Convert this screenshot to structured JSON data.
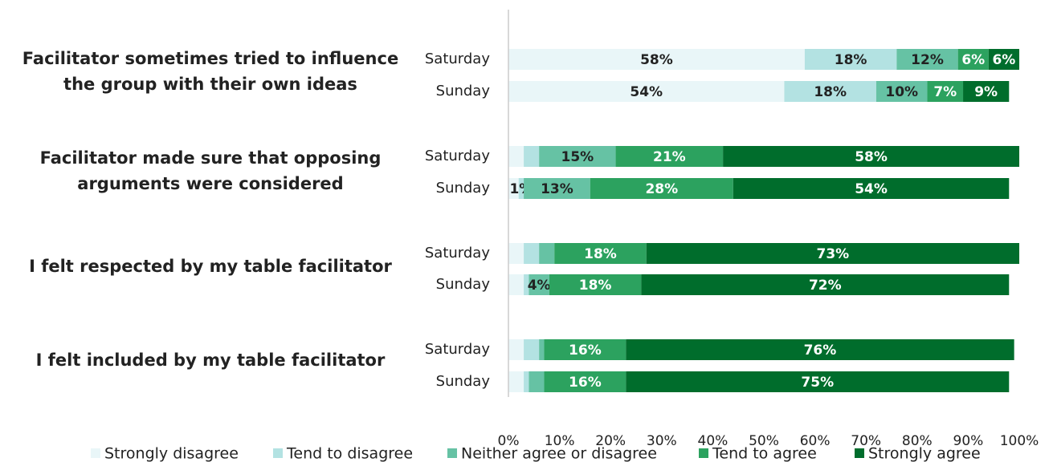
{
  "chart_data": {
    "type": "stacked-bar",
    "group_labels": [
      [
        "Facilitator sometimes tried to influence",
        "the group with their own ideas"
      ],
      [
        "Facilitator made sure that opposing",
        "arguments were considered"
      ],
      [
        "I felt respected by my table facilitator"
      ],
      [
        "I felt included by my table facilitator"
      ]
    ],
    "categories": [
      "Saturday",
      "Sunday",
      "Saturday",
      "Sunday",
      "Saturday",
      "Sunday",
      "Saturday",
      "Sunday"
    ],
    "series": [
      {
        "name": "Strongly disagree",
        "color": "#e9f6f8",
        "values": [
          58,
          54,
          3,
          2,
          3,
          3,
          3,
          3
        ],
        "value_labels": [
          "58%",
          "54%",
          null,
          null,
          null,
          null,
          null,
          null
        ]
      },
      {
        "name": "Tend to disagree",
        "color": "#b3e2e2",
        "values": [
          18,
          18,
          3,
          1,
          3,
          1,
          3,
          1
        ],
        "value_labels": [
          "18%",
          "18%",
          null,
          "1%",
          null,
          null,
          null,
          null
        ]
      },
      {
        "name": "Neither agree or disagree",
        "color": "#66c2a4",
        "values": [
          12,
          10,
          15,
          13,
          3,
          4,
          1,
          3
        ],
        "value_labels": [
          "12%",
          "10%",
          "15%",
          "13%",
          null,
          "4%",
          null,
          null
        ]
      },
      {
        "name": "Tend to agree",
        "color": "#2ca25f",
        "values": [
          6,
          7,
          21,
          28,
          18,
          18,
          16,
          16
        ],
        "value_labels": [
          "6%",
          "7%",
          "21%",
          "28%",
          "18%",
          "18%",
          "16%",
          "16%"
        ]
      },
      {
        "name": "Strongly agree",
        "color": "#006d2c",
        "values": [
          6,
          9,
          58,
          54,
          73,
          72,
          76,
          75
        ],
        "value_labels": [
          "6%",
          "9%",
          "58%",
          "54%",
          "73%",
          "72%",
          "76%",
          "75%"
        ]
      }
    ],
    "xlim": [
      0,
      100
    ],
    "xticks": [
      {
        "value": 0,
        "label": "0%"
      },
      {
        "value": 10,
        "label": "10%"
      },
      {
        "value": 20,
        "label": "20%"
      },
      {
        "value": 30,
        "label": "30%"
      },
      {
        "value": 40,
        "label": "40%"
      },
      {
        "value": 50,
        "label": "50%"
      },
      {
        "value": 60,
        "label": "60%"
      },
      {
        "value": 70,
        "label": "70%"
      },
      {
        "value": 80,
        "label": "80%"
      },
      {
        "value": 90,
        "label": "90%"
      },
      {
        "value": 100,
        "label": "100%"
      }
    ],
    "legend": "bottom"
  }
}
